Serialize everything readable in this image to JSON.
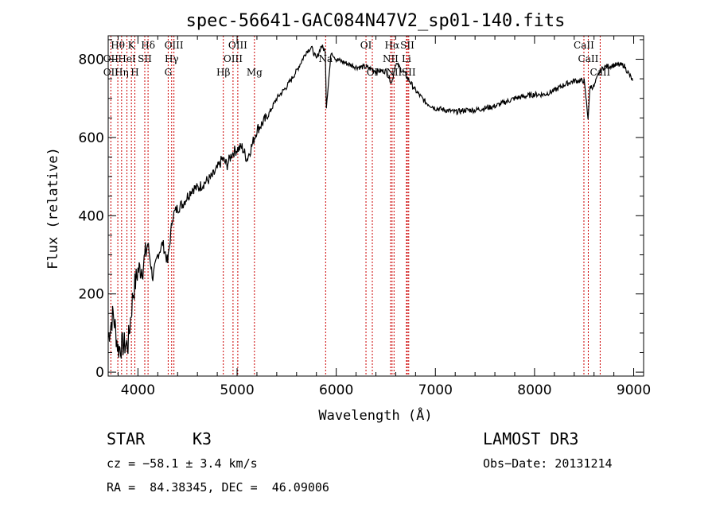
{
  "chart_data": {
    "type": "line",
    "title": "spec-56641-GAC084N47V2_sp01-140.fits",
    "xlabel": "Wavelength (Å)",
    "ylabel": "Flux (relative)",
    "xlim": [
      3700,
      9100
    ],
    "ylim": [
      -10,
      860
    ],
    "xticks": [
      4000,
      5000,
      6000,
      7000,
      8000,
      9000
    ],
    "yticks": [
      0,
      200,
      400,
      600,
      800
    ],
    "series": [
      {
        "name": "flux",
        "x": [
          3700,
          3750,
          3800,
          3850,
          3900,
          3950,
          4000,
          4050,
          4100,
          4150,
          4200,
          4250,
          4300,
          4350,
          4400,
          4450,
          4500,
          4550,
          4600,
          4650,
          4700,
          4750,
          4800,
          4850,
          4900,
          4950,
          5000,
          5050,
          5100,
          5150,
          5200,
          5300,
          5400,
          5500,
          5600,
          5700,
          5750,
          5800,
          5850,
          5890,
          5900,
          5950,
          6000,
          6100,
          6200,
          6300,
          6400,
          6500,
          6560,
          6600,
          6700,
          6800,
          6900,
          7000,
          7100,
          7200,
          7300,
          7400,
          7500,
          7600,
          7700,
          7800,
          7900,
          8000,
          8100,
          8200,
          8300,
          8400,
          8500,
          8540,
          8560,
          8600,
          8650,
          8700,
          8800,
          8900,
          8990
        ],
        "y": [
          90,
          150,
          60,
          70,
          70,
          200,
          260,
          270,
          330,
          240,
          300,
          330,
          280,
          400,
          420,
          430,
          450,
          470,
          470,
          480,
          490,
          500,
          520,
          545,
          530,
          560,
          570,
          575,
          545,
          580,
          620,
          650,
          700,
          730,
          770,
          820,
          830,
          800,
          835,
          820,
          680,
          820,
          800,
          790,
          780,
          780,
          770,
          770,
          740,
          790,
          760,
          720,
          690,
          675,
          670,
          665,
          670,
          670,
          675,
          680,
          690,
          700,
          705,
          710,
          710,
          720,
          735,
          745,
          745,
          650,
          730,
          730,
          765,
          780,
          785,
          785,
          745
        ]
      }
    ],
    "lines": [
      {
        "label": "Hθ",
        "x": 3797,
        "row": 0
      },
      {
        "label": "OII",
        "x": 3727,
        "row": 1
      },
      {
        "label": "OII",
        "x": 3727,
        "row": 3
      },
      {
        "label": "HeI",
        "x": 3889,
        "row": 1
      },
      {
        "label": "Hη",
        "x": 3835,
        "row": 2
      },
      {
        "label": "K",
        "x": 3934,
        "row": 0
      },
      {
        "label": "H",
        "x": 3969,
        "row": 2
      },
      {
        "label": "SII",
        "x": 4069,
        "row": 1
      },
      {
        "label": "Hδ",
        "x": 4102,
        "row": 0
      },
      {
        "label": "OIII",
        "x": 4363,
        "row": 0
      },
      {
        "label": "Hγ",
        "x": 4340,
        "row": 1
      },
      {
        "label": "G",
        "x": 4305,
        "row": 2
      },
      {
        "label": "Hβ",
        "x": 4861,
        "row": 2
      },
      {
        "label": "OIII",
        "x": 4959,
        "row": 1
      },
      {
        "label": "OIII",
        "x": 5007,
        "row": 0
      },
      {
        "label": "Mg",
        "x": 5175,
        "row": 2
      },
      {
        "label": "Na",
        "x": 5893,
        "row": 1
      },
      {
        "label": "OI",
        "x": 6300,
        "row": 0
      },
      {
        "label": "OI",
        "x": 6364,
        "row": 2
      },
      {
        "label": "Hα",
        "x": 6563,
        "row": 0
      },
      {
        "label": "NII",
        "x": 6548,
        "row": 1
      },
      {
        "label": "NII",
        "x": 6583,
        "row": 2
      },
      {
        "label": "SII",
        "x": 6717,
        "row": 0
      },
      {
        "label": "SII",
        "x": 6731,
        "row": 2
      },
      {
        "label": "Li",
        "x": 6708,
        "row": 1
      },
      {
        "label": "CaII",
        "x": 8498,
        "row": 0
      },
      {
        "label": "CaII",
        "x": 8542,
        "row": 1
      },
      {
        "label": "CaII",
        "x": 8662,
        "row": 2
      }
    ]
  },
  "info": {
    "class": "STAR",
    "subclass": "K3",
    "survey": "LAMOST DR3",
    "cz": "cz = −58.1 ± 3.4 km/s",
    "obsdate": "Obs−Date: 20131214",
    "radec": "RA =  84.38345, DEC =  46.09006"
  }
}
